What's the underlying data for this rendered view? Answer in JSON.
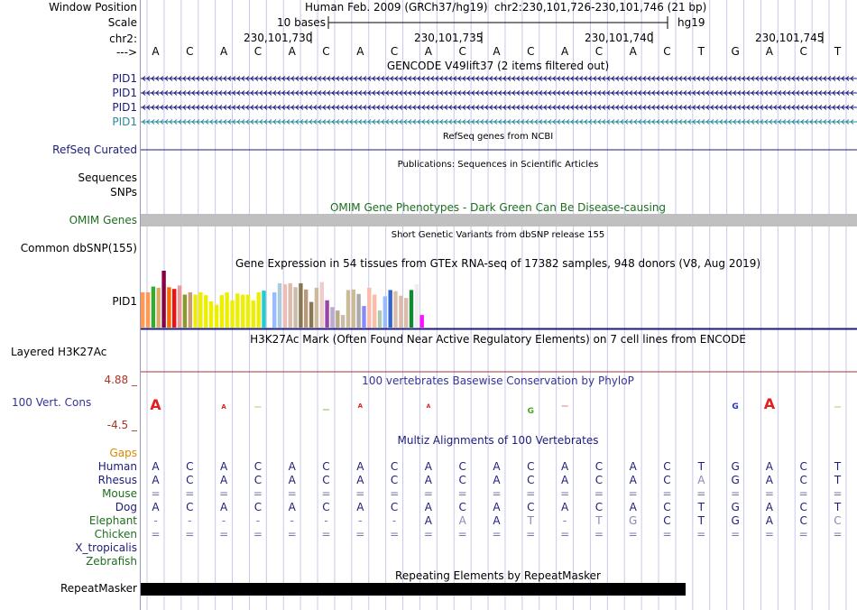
{
  "header": {
    "window_position_label": "Window Position",
    "scale_label": "Scale",
    "chrom_label": "chr2:",
    "strand_arrow": "--->",
    "assembly_text": "Human Feb. 2009 (GRCh37/hg19)",
    "position_text": "chr2:230,101,726-230,101,746 (21 bp)",
    "scale_text": "10 bases",
    "db_text": "hg19",
    "ruler_ticks": [
      "230,101,730",
      "230,101,735",
      "230,101,740",
      "230,101,745"
    ]
  },
  "sequence": [
    "A",
    "C",
    "A",
    "C",
    "A",
    "C",
    "A",
    "C",
    "A",
    "C",
    "A",
    "C",
    "A",
    "C",
    "A",
    "C",
    "T",
    "G",
    "A",
    "C",
    "T"
  ],
  "gencode": {
    "title": "GENCODE V49lift37 (2 items filtered out)",
    "genes": [
      {
        "name": "PID1",
        "color": "#1c1c7a"
      },
      {
        "name": "PID1",
        "color": "#1c1c7a"
      },
      {
        "name": "PID1",
        "color": "#1c1c7a"
      },
      {
        "name": "PID1",
        "color": "#2a8a9a"
      }
    ]
  },
  "refseq": {
    "label": "RefSeq Curated",
    "title": "RefSeq genes from NCBI",
    "color": "#1c1c7a"
  },
  "publications": {
    "title": "Publications: Sequences in Scientific Articles",
    "label_line1": "Sequences",
    "label_line2": "SNPs"
  },
  "omim": {
    "title": "OMIM Gene Phenotypes - Dark Green Can Be Disease-causing",
    "label": "OMIM Genes",
    "color": "#1e6e1e",
    "bar_color": "#c0c0c0"
  },
  "dbsnp": {
    "title": "Short Genetic Variants from dbSNP release 155",
    "label": "Common dbSNP(155)"
  },
  "gtex": {
    "title": "Gene Expression in 54 tissues from GTEx RNA-seq of 17382 samples, 948 donors (V8, Aug 2019)",
    "label": "PID1",
    "bars": [
      {
        "value": 0.62,
        "color": "#ff9955"
      },
      {
        "value": 0.62,
        "color": "#ff9955"
      },
      {
        "value": 0.72,
        "color": "#33aa33"
      },
      {
        "value": 0.7,
        "color": "#ddaa66"
      },
      {
        "value": 1.0,
        "color": "#880044"
      },
      {
        "value": 0.71,
        "color": "#ff6600"
      },
      {
        "value": 0.68,
        "color": "#ee1111"
      },
      {
        "value": 0.74,
        "color": "#ee9999"
      },
      {
        "value": 0.58,
        "color": "#8a9a2a"
      },
      {
        "value": 0.62,
        "color": "#cc9977"
      },
      {
        "value": 0.58,
        "color": "#eeee00"
      },
      {
        "value": 0.62,
        "color": "#eeee00"
      },
      {
        "value": 0.57,
        "color": "#eeee00"
      },
      {
        "value": 0.46,
        "color": "#eeee00"
      },
      {
        "value": 0.4,
        "color": "#eeee00"
      },
      {
        "value": 0.57,
        "color": "#eeee00"
      },
      {
        "value": 0.62,
        "color": "#eeee00"
      },
      {
        "value": 0.48,
        "color": "#eeee00"
      },
      {
        "value": 0.6,
        "color": "#eeee00"
      },
      {
        "value": 0.58,
        "color": "#eeee00"
      },
      {
        "value": 0.58,
        "color": "#eeee00"
      },
      {
        "value": 0.48,
        "color": "#eeee00"
      },
      {
        "value": 0.62,
        "color": "#eeee00"
      },
      {
        "value": 0.65,
        "color": "#22cccc"
      },
      {
        "value": 0.0,
        "color": "#ffffff"
      },
      {
        "value": 0.62,
        "color": "#99bbff"
      },
      {
        "value": 0.78,
        "color": "#aaccdd"
      },
      {
        "value": 0.76,
        "color": "#eebbbb"
      },
      {
        "value": 0.78,
        "color": "#ddbbaa"
      },
      {
        "value": 0.71,
        "color": "#ccbbaa"
      },
      {
        "value": 0.78,
        "color": "#887755"
      },
      {
        "value": 0.67,
        "color": "#bb9977"
      },
      {
        "value": 0.45,
        "color": "#887755"
      },
      {
        "value": 0.7,
        "color": "#ccbb99"
      },
      {
        "value": 0.8,
        "color": "#eecccc"
      },
      {
        "value": 0.48,
        "color": "#9944aa"
      },
      {
        "value": 0.36,
        "color": "#bbaacc"
      },
      {
        "value": 0.3,
        "color": "#bbaa88"
      },
      {
        "value": 0.22,
        "color": "#ccbbaa"
      },
      {
        "value": 0.66,
        "color": "#ccbb99"
      },
      {
        "value": 0.67,
        "color": "#ccbb99"
      },
      {
        "value": 0.59,
        "color": "#aaaaaa"
      },
      {
        "value": 0.38,
        "color": "#8888ff"
      },
      {
        "value": 0.7,
        "color": "#ffbbaa"
      },
      {
        "value": 0.58,
        "color": "#ffbbaa"
      },
      {
        "value": 0.3,
        "color": "#aaccaa"
      },
      {
        "value": 0.55,
        "color": "#99bbff"
      },
      {
        "value": 0.66,
        "color": "#3366cc"
      },
      {
        "value": 0.64,
        "color": "#ddbbaa"
      },
      {
        "value": 0.56,
        "color": "#ddbbaa"
      },
      {
        "value": 0.52,
        "color": "#ddbbaa"
      },
      {
        "value": 0.66,
        "color": "#118833"
      },
      {
        "value": 0.76,
        "color": "#eeeeee"
      },
      {
        "value": 0.22,
        "color": "#ff11ff"
      }
    ]
  },
  "h3k27ac": {
    "title": "H3K27Ac Mark (Often Found Near Active Regulatory Elements) on 7 cell lines from ENCODE",
    "label": "Layered H3K27Ac"
  },
  "phylop": {
    "title": "100 vertebrates Basewise Conservation by PhyloP",
    "label": "100 Vert. Cons",
    "ymax": "4.88 _",
    "ymin": "-4.5 _",
    "title_color": "#333399",
    "label_color": "#333399",
    "scale_color": "#aa3322"
  },
  "multiz": {
    "title": "Multiz Alignments of 100 Vertebrates",
    "title_color": "#1c1c7a",
    "gaps_label": "Gaps",
    "gaps_color": "#dd8800",
    "species": [
      {
        "name": "Human",
        "color": "#1c1c7a"
      },
      {
        "name": "Rhesus",
        "color": "#1c1c7a"
      },
      {
        "name": "Mouse",
        "color": "#1e6e1e"
      },
      {
        "name": "Dog",
        "color": "#1c1c7a"
      },
      {
        "name": "Elephant",
        "color": "#1e6e1e"
      },
      {
        "name": "Chicken",
        "color": "#1e6e1e"
      },
      {
        "name": "X_tropicalis",
        "color": "#1c1c7a"
      },
      {
        "name": "Zebrafish",
        "color": "#1e6e1e"
      }
    ],
    "rows": [
      [
        "A",
        "C",
        "A",
        "C",
        "A",
        "C",
        "A",
        "C",
        "A",
        "C",
        "A",
        "C",
        "A",
        "C",
        "A",
        "C",
        "T",
        "G",
        "A",
        "C",
        "T"
      ],
      [
        "A",
        "C",
        "A",
        "C",
        "A",
        "C",
        "A",
        "C",
        "A",
        "C",
        "A",
        "C",
        "A",
        "C",
        "A",
        "C",
        "A",
        "G",
        "A",
        "C",
        "T"
      ],
      [
        "=",
        "=",
        "=",
        "=",
        "=",
        "=",
        "=",
        "=",
        "=",
        "=",
        "=",
        "=",
        "=",
        "=",
        "=",
        "=",
        "=",
        "=",
        "=",
        "=",
        "="
      ],
      [
        "A",
        "C",
        "A",
        "C",
        "A",
        "C",
        "A",
        "C",
        "A",
        "C",
        "A",
        "C",
        "A",
        "C",
        "A",
        "C",
        "T",
        "G",
        "A",
        "C",
        "T"
      ],
      [
        "-",
        "-",
        "-",
        "-",
        "-",
        "-",
        "-",
        "-",
        "A",
        "A",
        "A",
        "T",
        "-",
        "T",
        "G",
        "C",
        "T",
        "G",
        "A",
        "C",
        "C"
      ],
      [
        "=",
        "=",
        "=",
        "=",
        "=",
        "=",
        "=",
        "=",
        "=",
        "=",
        "=",
        "=",
        "=",
        "=",
        "=",
        "=",
        "=",
        "=",
        "=",
        "=",
        "="
      ],
      [],
      []
    ]
  },
  "repeatmasker": {
    "title": "Repeating Elements by RepeatMasker",
    "label": "RepeatMasker"
  }
}
